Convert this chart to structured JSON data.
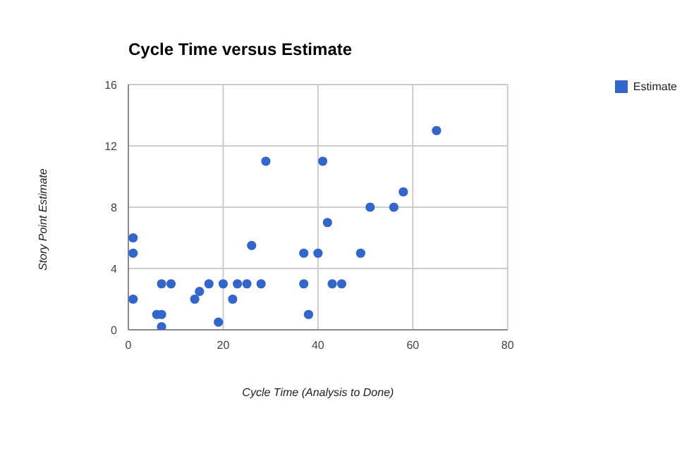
{
  "chart_data": {
    "type": "scatter",
    "title": "Cycle Time versus Estimate",
    "xlabel": "Cycle Time (Analysis to Done)",
    "ylabel": "Story Point Estimate",
    "x": [
      1,
      1,
      1,
      6,
      7,
      7,
      7,
      9,
      14,
      15,
      17,
      19,
      20,
      22,
      23,
      25,
      26,
      28,
      29,
      37,
      37,
      38,
      40,
      41,
      42,
      43,
      45,
      49,
      51,
      56,
      58,
      65
    ],
    "series": [
      {
        "name": "Estimate",
        "color": "#3366cc",
        "values": [
          6,
          5,
          2,
          1,
          1,
          0.2,
          3,
          3,
          2,
          2.5,
          3,
          0.5,
          3,
          2,
          3,
          3,
          5.5,
          3,
          11,
          5,
          3,
          1,
          5,
          11,
          7,
          3,
          3,
          5,
          8,
          8,
          9,
          13
        ]
      }
    ],
    "xlim": [
      0,
      80
    ],
    "xticks": [
      0,
      20,
      40,
      60,
      80
    ],
    "ylim": [
      0,
      16
    ],
    "yticks": [
      0,
      4,
      8,
      12,
      16
    ],
    "grid": true,
    "legend": "top right",
    "marker": "circle"
  }
}
